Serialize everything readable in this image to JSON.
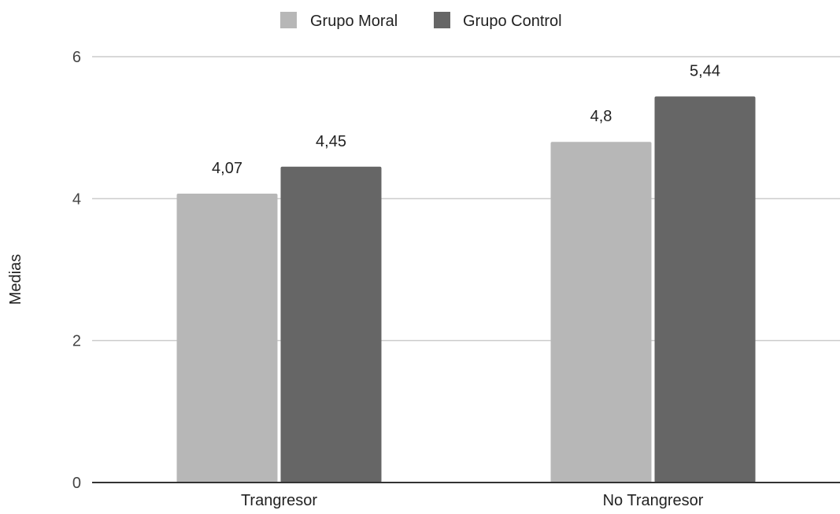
{
  "chart_data": {
    "type": "bar",
    "title": "",
    "xlabel": "",
    "ylabel": "Medias",
    "categories": [
      "Trangresor",
      "No Trangresor"
    ],
    "series": [
      {
        "name": "Grupo Moral",
        "values": [
          4.07,
          4.8
        ],
        "labels": [
          "4,07",
          "4,8"
        ],
        "color": "#b7b7b7"
      },
      {
        "name": "Grupo Control",
        "values": [
          4.45,
          5.44
        ],
        "labels": [
          "4,45",
          "5,44"
        ],
        "color": "#666666"
      }
    ],
    "ylim": [
      0,
      6
    ],
    "yticks": [
      0,
      2,
      4,
      6
    ],
    "ytick_labels": [
      "0",
      "2",
      "4",
      "6"
    ],
    "grid": true,
    "legend_position": "top-center",
    "colors": {
      "grid": "#cccccc",
      "axis": "#333333"
    }
  }
}
